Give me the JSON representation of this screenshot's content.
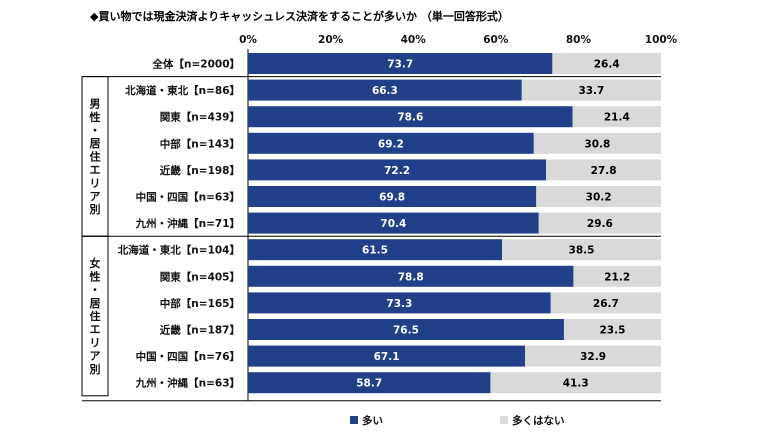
{
  "title": "◆買い物では現金決済よりキャッシュレス決済をすることが多いか （単一回答形式）",
  "colors": {
    "series1": "#223f8a",
    "series2": "#d9d9d9",
    "value1": "#ffffff",
    "value2": "#000000"
  },
  "chart_data": {
    "type": "bar",
    "orientation": "horizontal",
    "stacked": true,
    "xlim": [
      0,
      100
    ],
    "x_ticks": [
      "0%",
      "20%",
      "40%",
      "60%",
      "80%",
      "100%"
    ],
    "groups": [
      {
        "label": "男性・居住エリア別",
        "start": 1,
        "end": 6
      },
      {
        "label": "女性・居住エリア別",
        "start": 7,
        "end": 12
      }
    ],
    "categories": [
      "全体【n=2000】",
      "北海道・東北【n=86】",
      "関東【n=439】",
      "中部【n=143】",
      "近畿【n=198】",
      "中国・四国【n=63】",
      "九州・沖縄【n=71】",
      "北海道・東北【n=104】",
      "関東【n=405】",
      "中部【n=165】",
      "近畿【n=187】",
      "中国・四国【n=76】",
      "九州・沖縄【n=63】"
    ],
    "series": [
      {
        "name": "多い",
        "values": [
          73.7,
          66.3,
          78.6,
          69.2,
          72.2,
          69.8,
          70.4,
          61.5,
          78.8,
          73.3,
          76.5,
          67.1,
          58.7
        ]
      },
      {
        "name": "多くはない",
        "values": [
          26.4,
          33.7,
          21.4,
          30.8,
          27.8,
          30.2,
          29.6,
          38.5,
          21.2,
          26.7,
          23.5,
          32.9,
          41.3
        ]
      }
    ],
    "value_labels": [
      [
        "73.7",
        "66.3",
        "78.6",
        "69.2",
        "72.2",
        "69.8",
        "70.4",
        "61.5",
        "78.8",
        "73.3",
        "76.5",
        "67.1",
        "58.7"
      ],
      [
        "26.4",
        "33.7",
        "21.4",
        "30.8",
        "27.8",
        "30.2",
        "29.6",
        "38.5",
        "21.2",
        "26.7",
        "23.5",
        "32.9",
        "41.3"
      ]
    ],
    "legend": {
      "placement": "bottom-center"
    }
  }
}
